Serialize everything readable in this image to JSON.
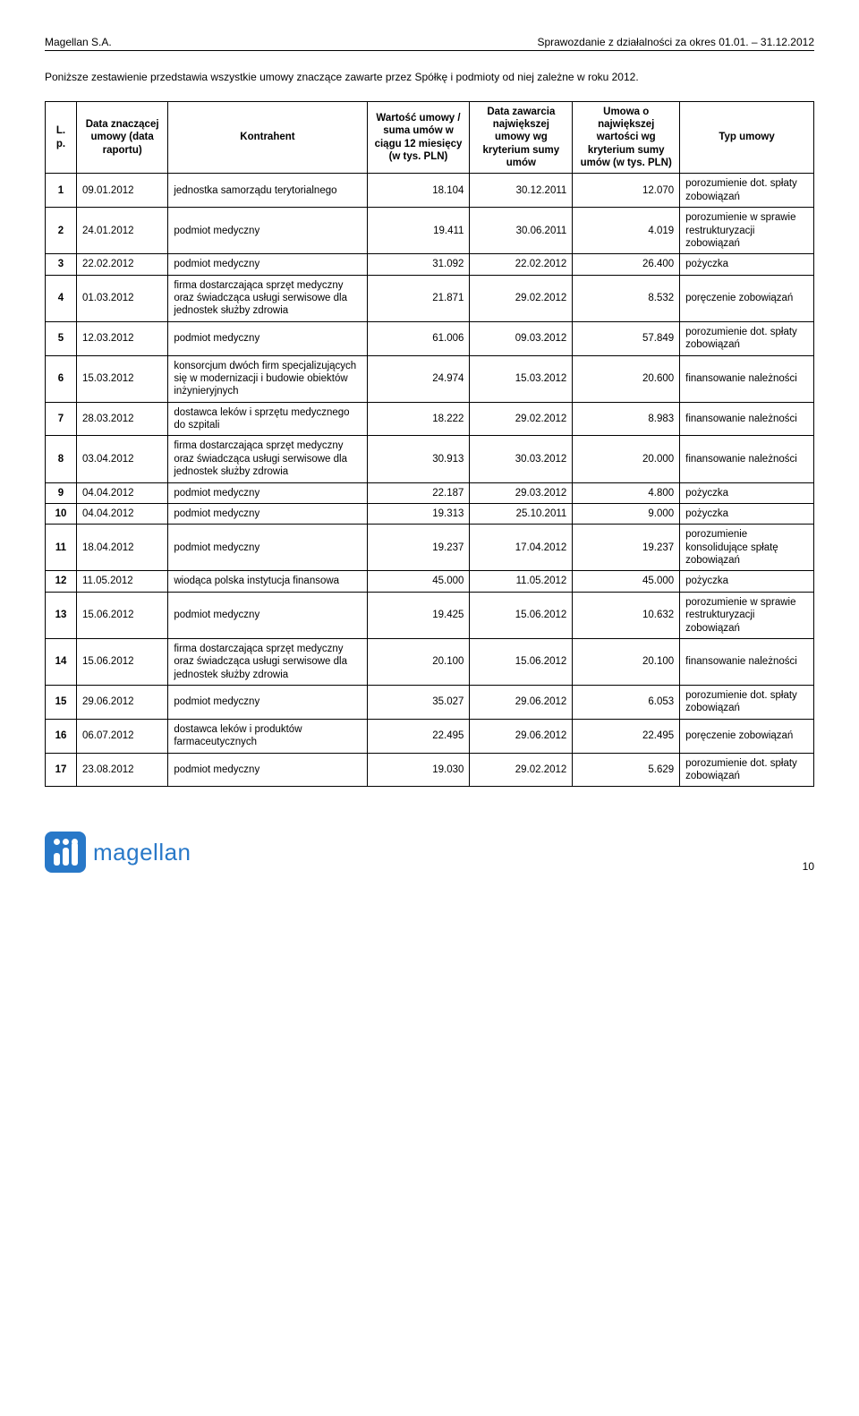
{
  "header": {
    "company": "Magellan S.A.",
    "report_title": "Sprawozdanie z działalności za okres 01.01. – 31.12.2012"
  },
  "intro": "Poniższe zestawienie przedstawia wszystkie umowy znaczące zawarte przez Spółkę i podmioty od niej zależne w roku 2012.",
  "table": {
    "columns": [
      "L. p.",
      "Data znaczącej umowy (data raportu)",
      "Kontrahent",
      "Wartość umowy / suma umów w ciągu 12 miesięcy (w tys. PLN)",
      "Data zawarcia największej umowy wg kryterium sumy umów",
      "Umowa o największej wartości wg kryterium sumy umów (w tys. PLN)",
      "Typ umowy"
    ],
    "col_align": [
      "center",
      "left",
      "left",
      "right",
      "right",
      "right",
      "left"
    ],
    "rows": [
      [
        "1",
        "09.01.2012",
        "jednostka samorządu terytorialnego",
        "18.104",
        "30.12.2011",
        "12.070",
        "porozumienie dot. spłaty zobowiązań"
      ],
      [
        "2",
        "24.01.2012",
        "podmiot medyczny",
        "19.411",
        "30.06.2011",
        "4.019",
        "porozumienie w sprawie restrukturyzacji zobowiązań"
      ],
      [
        "3",
        "22.02.2012",
        "podmiot medyczny",
        "31.092",
        "22.02.2012",
        "26.400",
        "pożyczka"
      ],
      [
        "4",
        "01.03.2012",
        "firma dostarczająca sprzęt medyczny oraz świadcząca usługi serwisowe dla jednostek służby zdrowia",
        "21.871",
        "29.02.2012",
        "8.532",
        "poręczenie zobowiązań"
      ],
      [
        "5",
        "12.03.2012",
        "podmiot medyczny",
        "61.006",
        "09.03.2012",
        "57.849",
        "porozumienie dot. spłaty zobowiązań"
      ],
      [
        "6",
        "15.03.2012",
        "konsorcjum dwóch firm specjalizujących się w modernizacji i budowie obiektów inżynieryjnych",
        "24.974",
        "15.03.2012",
        "20.600",
        "finansowanie należności"
      ],
      [
        "7",
        "28.03.2012",
        "dostawca leków i sprzętu medycznego do szpitali",
        "18.222",
        "29.02.2012",
        "8.983",
        "finansowanie należności"
      ],
      [
        "8",
        "03.04.2012",
        "firma dostarczająca sprzęt medyczny oraz świadcząca usługi serwisowe dla jednostek służby zdrowia",
        "30.913",
        "30.03.2012",
        "20.000",
        "finansowanie należności"
      ],
      [
        "9",
        "04.04.2012",
        "podmiot medyczny",
        "22.187",
        "29.03.2012",
        "4.800",
        "pożyczka"
      ],
      [
        "10",
        "04.04.2012",
        "podmiot medyczny",
        "19.313",
        "25.10.2011",
        "9.000",
        "pożyczka"
      ],
      [
        "11",
        "18.04.2012",
        "podmiot medyczny",
        "19.237",
        "17.04.2012",
        "19.237",
        "porozumienie konsolidujące spłatę zobowiązań"
      ],
      [
        "12",
        "11.05.2012",
        "wiodąca polska instytucja finansowa",
        "45.000",
        "11.05.2012",
        "45.000",
        "pożyczka"
      ],
      [
        "13",
        "15.06.2012",
        "podmiot medyczny",
        "19.425",
        "15.06.2012",
        "10.632",
        "porozumienie w sprawie restrukturyzacji zobowiązań"
      ],
      [
        "14",
        "15.06.2012",
        "firma dostarczająca sprzęt medyczny oraz świadcząca usługi serwisowe dla jednostek służby zdrowia",
        "20.100",
        "15.06.2012",
        "20.100",
        "finansowanie należności"
      ],
      [
        "15",
        "29.06.2012",
        "podmiot medyczny",
        "35.027",
        "29.06.2012",
        "6.053",
        "porozumienie dot. spłaty zobowiązań"
      ],
      [
        "16",
        "06.07.2012",
        "dostawca leków i produktów farmaceutycznych",
        "22.495",
        "29.06.2012",
        "22.495",
        "poręczenie zobowiązań"
      ],
      [
        "17",
        "23.08.2012",
        "podmiot medyczny",
        "19.030",
        "29.02.2012",
        "5.629",
        "porozumienie dot. spłaty zobowiązań"
      ]
    ]
  },
  "footer": {
    "logo_text": "magellan",
    "logo_color": "#2878c8",
    "page_number": "10"
  }
}
